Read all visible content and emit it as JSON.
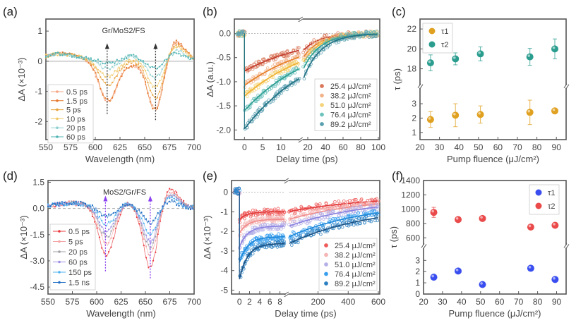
{
  "chart_data": [
    {
      "panel": "(a)",
      "type": "line",
      "annotation": "Gr/MoS2/FS",
      "xlabel": "Wavelength (nm)",
      "ylabel": "ΔA (×10⁻³)",
      "xlim": [
        550,
        700
      ],
      "ylim": [
        -2.6,
        1.4
      ],
      "xticks": [
        "550",
        "575",
        "600",
        "625",
        "650",
        "675",
        "700"
      ],
      "yticks": [
        "1",
        "0",
        "-1",
        "-2"
      ],
      "ytick_values": [
        1,
        0,
        -1,
        -2
      ],
      "xtick_values": [
        550,
        575,
        600,
        625,
        650,
        675,
        700
      ],
      "legend_position": "bottom-left",
      "arrows_at_nm": [
        611,
        660
      ],
      "series": [
        {
          "name": "0.5 ps",
          "color": "#f4a582",
          "dip1": -1.4,
          "dip2": -1.65,
          "mid": -0.45,
          "peak": 0.6
        },
        {
          "name": "1.5 ps",
          "color": "#e6762a",
          "dip1": -1.35,
          "dip2": -1.7,
          "mid": -0.4,
          "peak": 0.65
        },
        {
          "name": "5   ps",
          "color": "#e8a23a",
          "dip1": -0.85,
          "dip2": -1.3,
          "mid": -0.1,
          "peak": 0.5
        },
        {
          "name": "10  ps",
          "color": "#f0c96a",
          "dip1": -0.55,
          "dip2": -0.95,
          "mid": 0.0,
          "peak": 0.45
        },
        {
          "name": "20  ps",
          "color": "#8fd0d0",
          "dip1": -0.3,
          "dip2": -0.6,
          "mid": 0.25,
          "peak": 0.3
        },
        {
          "name": "60  ps",
          "color": "#4fb3b3",
          "dip1": -0.1,
          "dip2": -0.3,
          "mid": 0.35,
          "peak": 0.2
        }
      ]
    },
    {
      "panel": "(b)",
      "type": "scatter",
      "xlabel": "Delay time (ps)",
      "ylabel": "ΔA (a.u.)",
      "ylim": [
        -2.2,
        0.3
      ],
      "yticks": [
        "0.0",
        "-0.5",
        "-1.0",
        "-1.5",
        "-2.0"
      ],
      "ytick_values": [
        0,
        -0.5,
        -1.0,
        -1.5,
        -2.0
      ],
      "x_break": true,
      "xlim_left": [
        -2,
        15
      ],
      "xlim_right": [
        15,
        100
      ],
      "xticks_left": [
        "0",
        "5",
        "10"
      ],
      "xtick_values_left": [
        0,
        5,
        10
      ],
      "xticks_right": [
        "20",
        "40",
        "60",
        "80",
        "100"
      ],
      "xtick_values_right": [
        20,
        40,
        60,
        80,
        100
      ],
      "legend_position": "bottom-right",
      "series": [
        {
          "name": "25.4 μJ/cm²",
          "color": "#d9785a",
          "fit": "#c0392b",
          "amp": -0.78,
          "tau": 18.6
        },
        {
          "name": "38.2 μJ/cm²",
          "color": "#f2b48c",
          "fit": "#e67e22",
          "amp": -1.08,
          "tau": 19.0
        },
        {
          "name": "51.0 μJ/cm²",
          "color": "#f5d37a",
          "fit": "#f0b030",
          "amp": -1.3,
          "tau": 19.5
        },
        {
          "name": "76.4 μJ/cm²",
          "color": "#6cc2bd",
          "fit": "#2a9d8f",
          "amp": -1.6,
          "tau": 19.2
        },
        {
          "name": "89.2 μJ/cm²",
          "color": "#5a9fb0",
          "fit": "#1d6f80",
          "amp": -1.98,
          "tau": 20.0
        }
      ]
    },
    {
      "panel": "(c)",
      "type": "scatter",
      "xlabel": "Pump fluence (μJ/cm²)",
      "ylabel": "τ (ps)",
      "xlim": [
        20,
        95
      ],
      "xticks": [
        "20",
        "30",
        "40",
        "50",
        "60",
        "70",
        "80",
        "90"
      ],
      "xtick_values": [
        20,
        30,
        40,
        50,
        60,
        70,
        80,
        90
      ],
      "y_break": true,
      "ylim_upper": [
        16.5,
        23
      ],
      "ylim_lower": [
        0.5,
        4
      ],
      "yticks_upper": [
        "22",
        "20",
        "18"
      ],
      "ytick_values_upper": [
        22,
        20,
        18
      ],
      "yticks_lower": [
        "3",
        "2",
        "1"
      ],
      "ytick_values_lower": [
        3,
        2,
        1
      ],
      "legend_position": "top-left",
      "x": [
        25.4,
        38.2,
        51.0,
        76.4,
        89.2
      ],
      "series": [
        {
          "name": "τ1",
          "color": "#e0a020",
          "axis": "lower",
          "values": [
            1.9,
            2.2,
            2.25,
            2.4,
            2.5
          ],
          "errors": [
            0.55,
            0.8,
            0.6,
            0.85,
            0.1
          ]
        },
        {
          "name": "τ2",
          "color": "#2a9d8f",
          "axis": "upper",
          "values": [
            18.6,
            19.0,
            19.5,
            19.2,
            20.0
          ],
          "errors": [
            0.8,
            0.6,
            0.7,
            0.85,
            1.0
          ]
        }
      ]
    },
    {
      "panel": "(d)",
      "type": "line",
      "annotation": "MoS2/Gr/FS",
      "xlabel": "Wavelength (nm)",
      "ylabel": "ΔA (×10⁻³)",
      "xlim": [
        550,
        700
      ],
      "ylim": [
        -4.9,
        1.6
      ],
      "xticks": [
        "550",
        "575",
        "600",
        "625",
        "650",
        "675",
        "700"
      ],
      "xtick_values": [
        550,
        575,
        600,
        625,
        650,
        675,
        700
      ],
      "yticks": [
        "1.5",
        "0.0",
        "-1.5",
        "-3.0",
        "-4.5"
      ],
      "ytick_values": [
        1.5,
        0,
        -1.5,
        -3.0,
        -4.5
      ],
      "legend_position": "bottom-left",
      "arrows_at_nm": [
        608,
        654
      ],
      "series": [
        {
          "name": "0.5 ps",
          "color": "#e8383d",
          "dip1": -2.7,
          "dip2": -3.5,
          "mid": 0.55,
          "peak": 1.05
        },
        {
          "name": "5   ps",
          "color": "#f4a6a6",
          "dip1": -2.1,
          "dip2": -2.7,
          "mid": 0.6,
          "peak": 0.9
        },
        {
          "name": "20  ps",
          "color": "#a0a0a8",
          "dip1": -1.7,
          "dip2": -2.3,
          "mid": 0.55,
          "peak": 0.8
        },
        {
          "name": "60  ps",
          "color": "#9a8fe0",
          "dip1": -1.4,
          "dip2": -2.0,
          "mid": 0.5,
          "peak": 0.7
        },
        {
          "name": "150 ps",
          "color": "#4db3f0",
          "dip1": -1.0,
          "dip2": -1.5,
          "mid": 0.4,
          "peak": 0.6
        },
        {
          "name": "1.5 ns",
          "color": "#1f6fc4",
          "dip1": -0.55,
          "dip2": -0.9,
          "mid": 0.3,
          "peak": 0.35
        }
      ]
    },
    {
      "panel": "(e)",
      "type": "scatter",
      "xlabel": "Delay time (ps)",
      "ylabel": "ΔA (×10⁻³)",
      "ylim": [
        -5.2,
        0.6
      ],
      "yticks": [
        "0",
        "-1",
        "-2",
        "-3",
        "-4",
        "-5"
      ],
      "ytick_values": [
        0,
        -1,
        -2,
        -3,
        -4,
        -5
      ],
      "x_break": true,
      "xlim_left": [
        -1,
        9
      ],
      "xlim_right": [
        9,
        600
      ],
      "xticks_left": [
        "0",
        "2",
        "4",
        "6",
        "8"
      ],
      "xtick_values_left": [
        0,
        2,
        4,
        6,
        8
      ],
      "xticks_right": [
        "200",
        "400",
        "600"
      ],
      "xtick_values_right": [
        200,
        400,
        600
      ],
      "legend_position": "bottom-right",
      "series": [
        {
          "name": "25.4 μJ/cm²",
          "color": "#ef5a5a",
          "fit": "#e23b3b",
          "peak": -1.4,
          "plateau": -1.0,
          "end": -0.45
        },
        {
          "name": "38.2 μJ/cm²",
          "color": "#f5b5b5",
          "fit": "#f08a8a",
          "peak": -2.1,
          "plateau": -1.4,
          "end": -0.6
        },
        {
          "name": "51.0 μJ/cm²",
          "color": "#b5b0e8",
          "fit": "#8a80e0",
          "peak": -2.8,
          "plateau": -1.75,
          "end": -0.75
        },
        {
          "name": "76.4 μJ/cm²",
          "color": "#3aa0ee",
          "fit": "#1c86d8",
          "peak": -3.6,
          "plateau": -2.3,
          "end": -1.05
        },
        {
          "name": "89.2 μJ/cm²",
          "color": "#2c7fc0",
          "fit": "#1b4f80",
          "peak": -4.45,
          "plateau": -2.65,
          "end": -1.3
        }
      ]
    },
    {
      "panel": "(f)",
      "type": "scatter",
      "xlabel": "Pump fluence (μJ/cm²)",
      "ylabel": "τ (ps)",
      "xlim": [
        20,
        95
      ],
      "xticks": [
        "20",
        "30",
        "40",
        "50",
        "60",
        "70",
        "80",
        "90"
      ],
      "xtick_values": [
        20,
        30,
        40,
        50,
        60,
        70,
        80,
        90
      ],
      "y_break": true,
      "ylim_upper": [
        520,
        1400
      ],
      "ylim_lower": [
        0,
        4
      ],
      "yticks_upper": [
        "1400",
        "1200",
        "1000",
        "800",
        "600"
      ],
      "ytick_values_upper": [
        1400,
        1200,
        1000,
        800,
        600
      ],
      "yticks_lower": [
        "3",
        "2",
        "1",
        "0"
      ],
      "ytick_values_lower": [
        3,
        2,
        1,
        0
      ],
      "legend_position": "top-right",
      "x": [
        25.4,
        38.2,
        51.0,
        76.4,
        89.2
      ],
      "series": [
        {
          "name": "τ1",
          "color": "#3a4ef0",
          "axis": "lower",
          "values": [
            1.5,
            2.05,
            0.85,
            2.3,
            1.3
          ],
          "errors": [
            0.1,
            0.2,
            0.05,
            0.1,
            0.05
          ]
        },
        {
          "name": "τ2",
          "color": "#ea4a4a",
          "axis": "upper",
          "values": [
            955,
            855,
            870,
            750,
            775
          ],
          "errors": [
            70,
            25,
            15,
            15,
            15
          ]
        }
      ]
    }
  ]
}
